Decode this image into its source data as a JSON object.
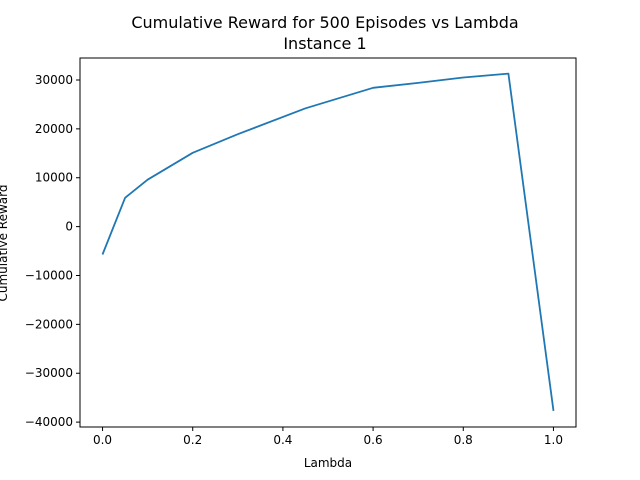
{
  "chart_data": {
    "type": "line",
    "title": "Cumulative Reward for 500 Episodes vs Lambda",
    "subtitle": "Instance 1",
    "xlabel": "Lambda",
    "ylabel": "Cumulative Reward",
    "xlim": [
      -0.05,
      1.05
    ],
    "ylim": [
      -41000,
      34500
    ],
    "grid": false,
    "x_ticks": [
      0.0,
      0.2,
      0.4,
      0.6,
      0.8,
      1.0
    ],
    "x_tick_labels": [
      "0.0",
      "0.2",
      "0.4",
      "0.6",
      "0.8",
      "1.0"
    ],
    "y_ticks": [
      -40000,
      -30000,
      -20000,
      -10000,
      0,
      10000,
      20000,
      30000
    ],
    "y_tick_labels": [
      "−40000",
      "−30000",
      "−20000",
      "−10000",
      "0",
      "10000",
      "20000",
      "30000"
    ],
    "series": [
      {
        "color": "#1f77b4",
        "x": [
          0.0,
          0.05,
          0.1,
          0.2,
          0.3,
          0.45,
          0.6,
          0.7,
          0.8,
          0.9,
          1.0
        ],
        "y": [
          -5700,
          5900,
          9600,
          15100,
          18900,
          24200,
          28400,
          29400,
          30500,
          31300,
          -37700
        ]
      }
    ]
  }
}
